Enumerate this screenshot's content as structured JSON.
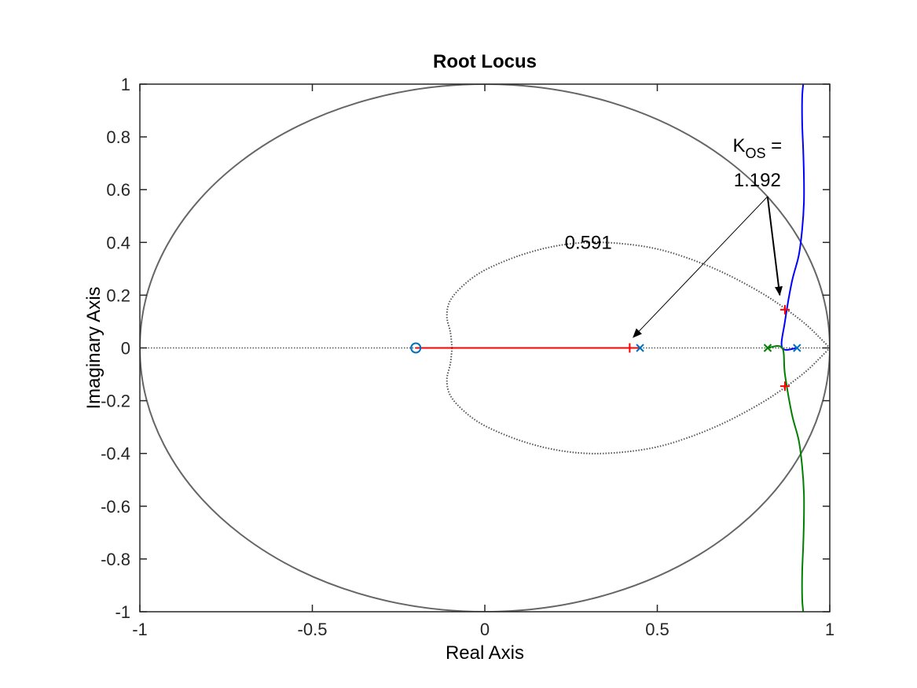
{
  "chart_data": {
    "type": "line",
    "title": "Root Locus",
    "xlabel": "Real Axis",
    "ylabel": "Imaginary Axis",
    "xlim": [
      -1,
      1
    ],
    "ylim": [
      -1,
      1
    ],
    "xticks": [
      -1,
      -0.5,
      0,
      0.5,
      1
    ],
    "xtick_labels": [
      "-1",
      "-0.5",
      "0",
      "0.5",
      "1"
    ],
    "yticks": [
      -1,
      -0.8,
      -0.6,
      -0.4,
      -0.2,
      0,
      0.2,
      0.4,
      0.6,
      0.8,
      1
    ],
    "ytick_labels": [
      "-1",
      "-0.8",
      "-0.6",
      "-0.4",
      "-0.2",
      "0",
      "0.2",
      "0.4",
      "0.6",
      "0.8",
      "1"
    ],
    "grid": false,
    "unit_circle": true,
    "zeta_contour": {
      "label": "0.591",
      "points": [
        [
          -0.095,
          0.0
        ],
        [
          -0.1,
          0.06
        ],
        [
          -0.11,
          0.12
        ],
        [
          -0.1,
          0.18
        ],
        [
          -0.06,
          0.24
        ],
        [
          0.0,
          0.295
        ],
        [
          0.1,
          0.35
        ],
        [
          0.2,
          0.385
        ],
        [
          0.3,
          0.4
        ],
        [
          0.4,
          0.395
        ],
        [
          0.5,
          0.375
        ],
        [
          0.6,
          0.335
        ],
        [
          0.7,
          0.28
        ],
        [
          0.8,
          0.21
        ],
        [
          0.87,
          0.15
        ],
        [
          0.93,
          0.09
        ],
        [
          0.97,
          0.04
        ],
        [
          1.0,
          0.0
        ]
      ]
    },
    "poles": [
      {
        "x": 0.45,
        "y": 0,
        "color": "#0072BD"
      },
      {
        "x": 0.82,
        "y": 0,
        "color": "#008000"
      },
      {
        "x": 0.905,
        "y": 0,
        "color": "#0072BD"
      }
    ],
    "zeros": [
      {
        "x": -0.2,
        "y": 0,
        "color": "#0072BD"
      }
    ],
    "series": [
      {
        "color": "#FF0000",
        "points": [
          [
            -0.2,
            0
          ],
          [
            0.45,
            0
          ]
        ]
      },
      {
        "color": "#0000FF",
        "points": [
          [
            0.905,
            0
          ],
          [
            0.862,
            0
          ],
          [
            0.87,
            0.1
          ],
          [
            0.89,
            0.25
          ],
          [
            0.91,
            0.35
          ],
          [
            0.92,
            0.45
          ],
          [
            0.925,
            0.55
          ],
          [
            0.925,
            0.65
          ],
          [
            0.923,
            0.75
          ],
          [
            0.92,
            0.85
          ],
          [
            0.92,
            0.95
          ],
          [
            0.923,
            1.0
          ]
        ]
      },
      {
        "color": "#008000",
        "points": [
          [
            0.82,
            0
          ],
          [
            0.862,
            0
          ],
          [
            0.87,
            -0.1
          ],
          [
            0.89,
            -0.25
          ],
          [
            0.91,
            -0.35
          ],
          [
            0.92,
            -0.45
          ],
          [
            0.925,
            -0.55
          ],
          [
            0.925,
            -0.65
          ],
          [
            0.923,
            -0.75
          ],
          [
            0.92,
            -0.85
          ],
          [
            0.92,
            -0.95
          ],
          [
            0.923,
            -1.0
          ]
        ]
      }
    ],
    "gain_points": [
      {
        "x": 0.42,
        "y": 0,
        "color": "#FF0000"
      },
      {
        "x": 0.87,
        "y": 0.145,
        "color": "#FF0000"
      },
      {
        "x": 0.87,
        "y": -0.145,
        "color": "#FF0000"
      }
    ],
    "annotation": {
      "line1_main": "K",
      "line1_sub": "OS",
      "line1_suffix": " =",
      "line2": "1.192"
    }
  },
  "colors": {
    "axis": "#262626",
    "contour": "#555555",
    "circle": "#666666"
  }
}
